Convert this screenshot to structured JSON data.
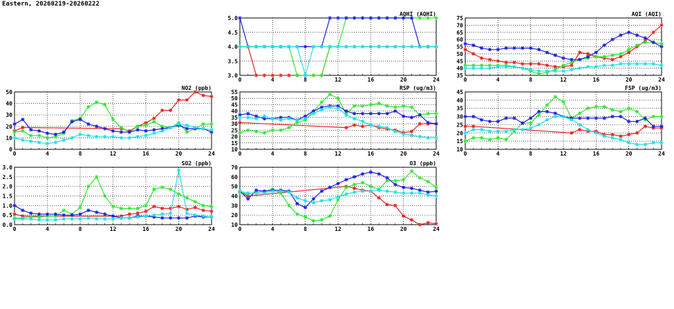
{
  "page": {
    "title": "Eastern, 20260219-20260222"
  },
  "colors": {
    "red": "#e8201f",
    "green": "#2ee82e",
    "blue": "#1c1ce0",
    "cyan": "#1ee0e8"
  },
  "chart_data": [
    {
      "id": "aqhi",
      "type": "line",
      "title": "AQHI (AQHI)",
      "xlim": [
        0,
        24
      ],
      "xticks": [
        0,
        4,
        8,
        12,
        16,
        20,
        24
      ],
      "ylim": [
        3,
        5
      ],
      "yticks": [
        "3.0",
        "3.5",
        "4.0",
        "4.5",
        "5.0"
      ],
      "grid": true,
      "x": [
        0,
        1,
        2,
        3,
        4,
        5,
        6,
        7,
        8,
        9,
        10,
        11,
        12,
        13,
        14,
        15,
        16,
        17,
        18,
        19,
        20,
        21,
        22,
        23,
        24
      ],
      "series": [
        {
          "color": "red",
          "values": [
            4,
            4,
            3,
            3,
            3,
            3,
            3,
            3,
            3,
            3,
            3,
            4,
            4,
            4,
            4,
            4,
            4,
            4,
            4,
            4,
            4,
            4,
            4,
            4,
            4
          ]
        },
        {
          "color": "green",
          "values": [
            4,
            4,
            4,
            4,
            4,
            4,
            4,
            3,
            3,
            3,
            3,
            4,
            4,
            5,
            5,
            5,
            5,
            5,
            5,
            5,
            5,
            5,
            5,
            5,
            5
          ]
        },
        {
          "color": "blue",
          "values": [
            5,
            4,
            4,
            4,
            4,
            4,
            4,
            4,
            4,
            4,
            4,
            5,
            5,
            5,
            5,
            5,
            5,
            5,
            5,
            5,
            5,
            5,
            4,
            4,
            4
          ]
        },
        {
          "color": "cyan",
          "values": [
            4,
            4,
            4,
            4,
            4,
            4,
            4,
            4,
            3,
            4,
            4,
            4,
            4,
            4,
            4,
            4,
            4,
            4,
            4,
            4,
            4,
            4,
            4,
            4,
            4
          ]
        }
      ]
    },
    {
      "id": "aqi",
      "type": "line",
      "title": "AQI (AQI)",
      "xlim": [
        0,
        24
      ],
      "xticks": [
        0,
        4,
        8,
        12,
        16,
        20,
        24
      ],
      "ylim": [
        35,
        75
      ],
      "yticks": [
        "35",
        "40",
        "45",
        "50",
        "55",
        "60",
        "65",
        "70",
        "75"
      ],
      "grid": true,
      "x": [
        0,
        1,
        2,
        3,
        4,
        5,
        6,
        7,
        8,
        9,
        10,
        11,
        12,
        13,
        14,
        15,
        16,
        17,
        18,
        19,
        20,
        21,
        22,
        23,
        24
      ],
      "series": [
        {
          "color": "red",
          "values": [
            53,
            50,
            47,
            46,
            45,
            44,
            44,
            43,
            43,
            43,
            42,
            41,
            41,
            42,
            51,
            50,
            48,
            47,
            46,
            48,
            51,
            55,
            59,
            65,
            70
          ]
        },
        {
          "color": "green",
          "values": [
            42,
            42,
            42,
            42,
            42,
            42,
            41,
            40,
            38,
            36,
            37,
            39,
            42,
            44,
            46,
            47,
            48,
            48,
            49,
            50,
            53,
            56,
            58,
            58,
            57
          ]
        },
        {
          "color": "blue",
          "values": [
            57,
            56,
            54,
            53,
            53,
            54,
            54,
            54,
            54,
            53,
            51,
            49,
            47,
            46,
            46,
            48,
            51,
            56,
            60,
            63,
            65,
            63,
            61,
            58,
            55
          ]
        },
        {
          "color": "cyan",
          "values": [
            40,
            40,
            40,
            40,
            41,
            41,
            41,
            40,
            39,
            38,
            38,
            38,
            38,
            39,
            40,
            41,
            41,
            42,
            42,
            43,
            43,
            43,
            43,
            43,
            42
          ]
        }
      ]
    },
    {
      "id": "no2",
      "type": "line",
      "title": "NO2 (ppb)",
      "xlim": [
        0,
        24
      ],
      "xticks": [
        0,
        4,
        8,
        12,
        16,
        20,
        24
      ],
      "ylim": [
        0,
        50
      ],
      "yticks": [
        "0",
        "10",
        "20",
        "30",
        "40",
        "50"
      ],
      "grid": true,
      "x": [
        0,
        1,
        2,
        3,
        4,
        5,
        6,
        7,
        8,
        9,
        10,
        11,
        12,
        13,
        14,
        15,
        16,
        17,
        18,
        19,
        20,
        21,
        22,
        23,
        24
      ],
      "series": [
        {
          "color": "red",
          "values": [
            16,
            19,
            null,
            null,
            null,
            null,
            null,
            null,
            null,
            null,
            null,
            null,
            null,
            18,
            16,
            20,
            23,
            27,
            34,
            34,
            43,
            43,
            50,
            47,
            46
          ]
        },
        {
          "color": "green",
          "values": [
            15,
            16,
            12,
            12,
            10,
            11,
            14,
            25,
            27,
            37,
            41,
            39,
            26,
            19,
            15,
            20,
            21,
            24,
            20,
            19,
            23,
            15,
            18,
            22,
            22
          ]
        },
        {
          "color": "blue",
          "values": [
            22,
            26,
            17,
            16,
            14,
            13,
            15,
            24,
            26,
            22,
            20,
            18,
            16,
            15,
            15,
            17,
            16,
            17,
            18,
            19,
            21,
            18,
            18,
            18,
            15
          ]
        },
        {
          "color": "cyan",
          "values": [
            10,
            8,
            7,
            6,
            5,
            6,
            8,
            10,
            13,
            12,
            11,
            11,
            11,
            10,
            10,
            11,
            12,
            14,
            16,
            19,
            22,
            21,
            19,
            18,
            17
          ]
        }
      ]
    },
    {
      "id": "rsp",
      "type": "line",
      "title": "RSP (ug/m3)",
      "xlim": [
        0,
        24
      ],
      "xticks": [
        0,
        4,
        8,
        12,
        16,
        20,
        24
      ],
      "ylim": [
        10,
        55
      ],
      "yticks": [
        "10",
        "15",
        "20",
        "25",
        "30",
        "35",
        "40",
        "45",
        "50",
        "55"
      ],
      "grid": true,
      "x": [
        0,
        1,
        2,
        3,
        4,
        5,
        6,
        7,
        8,
        9,
        10,
        11,
        12,
        13,
        14,
        15,
        16,
        17,
        18,
        19,
        20,
        21,
        22,
        23,
        24
      ],
      "series": [
        {
          "color": "red",
          "values": [
            31,
            null,
            null,
            null,
            null,
            null,
            null,
            null,
            null,
            null,
            null,
            null,
            null,
            27,
            29,
            28,
            29,
            27,
            26,
            25,
            23,
            24,
            30,
            30,
            30
          ]
        },
        {
          "color": "green",
          "values": [
            23,
            25,
            24,
            23,
            25,
            25,
            27,
            31,
            33,
            40,
            47,
            53,
            50,
            38,
            44,
            44,
            45,
            46,
            44,
            43,
            44,
            43,
            37,
            38,
            38
          ]
        },
        {
          "color": "blue",
          "values": [
            37,
            38,
            36,
            34,
            34,
            35,
            35,
            33,
            36,
            40,
            43,
            44,
            44,
            40,
            38,
            38,
            38,
            38,
            38,
            40,
            36,
            35,
            37,
            31,
            30
          ]
        },
        {
          "color": "cyan",
          "values": [
            35,
            35,
            34,
            36,
            34,
            33,
            34,
            33,
            34,
            38,
            41,
            43,
            42,
            37,
            34,
            32,
            29,
            28,
            27,
            24,
            22,
            21,
            20,
            19,
            19
          ]
        }
      ]
    },
    {
      "id": "fsp",
      "type": "line",
      "title": "FSP (ug/m3)",
      "xlim": [
        0,
        24
      ],
      "xticks": [
        0,
        4,
        8,
        12,
        16,
        20,
        24
      ],
      "ylim": [
        10,
        45
      ],
      "yticks": [
        "10",
        "15",
        "20",
        "25",
        "30",
        "35",
        "40",
        "45"
      ],
      "grid": true,
      "x": [
        0,
        1,
        2,
        3,
        4,
        5,
        6,
        7,
        8,
        9,
        10,
        11,
        12,
        13,
        14,
        15,
        16,
        17,
        18,
        19,
        20,
        21,
        22,
        23,
        24
      ],
      "series": [
        {
          "color": "red",
          "values": [
            24,
            24,
            null,
            null,
            null,
            null,
            null,
            null,
            null,
            null,
            null,
            null,
            null,
            20,
            22,
            21,
            21,
            19,
            19,
            18,
            19,
            20,
            24,
            23,
            23
          ]
        },
        {
          "color": "green",
          "values": [
            15,
            17,
            17,
            16,
            17,
            16,
            21,
            26,
            26,
            31,
            37,
            42,
            39,
            29,
            32,
            35,
            36,
            36,
            34,
            33,
            35,
            33,
            28,
            30,
            30
          ]
        },
        {
          "color": "blue",
          "values": [
            30,
            30,
            28,
            27,
            27,
            29,
            29,
            26,
            29,
            33,
            33,
            32,
            30,
            29,
            29,
            29,
            29,
            29,
            30,
            30,
            27,
            27,
            29,
            24,
            24
          ]
        },
        {
          "color": "cyan",
          "values": [
            20,
            22,
            22,
            21,
            21,
            21,
            22,
            22,
            23,
            25,
            28,
            30,
            30,
            28,
            25,
            22,
            20,
            18,
            17,
            16,
            14,
            13,
            13,
            14,
            14
          ]
        }
      ]
    },
    {
      "id": "so2",
      "type": "line",
      "title": "SO2 (ppb)",
      "xlim": [
        0,
        24
      ],
      "xticks": [
        0,
        4,
        8,
        12,
        16,
        20,
        24
      ],
      "ylim": [
        0,
        3
      ],
      "yticks": [
        "0.0",
        "0.5",
        "1.0",
        "1.5",
        "2.0",
        "2.5",
        "3.0"
      ],
      "grid": true,
      "x": [
        0,
        1,
        2,
        3,
        4,
        5,
        6,
        7,
        8,
        9,
        10,
        11,
        12,
        13,
        14,
        15,
        16,
        17,
        18,
        19,
        20,
        21,
        22,
        23,
        24
      ],
      "series": [
        {
          "color": "red",
          "values": [
            0.55,
            0.45,
            null,
            null,
            null,
            null,
            null,
            null,
            null,
            null,
            null,
            null,
            null,
            0.45,
            0.55,
            0.6,
            0.7,
            0.95,
            0.85,
            0.85,
            0.95,
            0.8,
            0.9,
            0.75,
            0.7
          ]
        },
        {
          "color": "green",
          "values": [
            0.35,
            0.35,
            0.4,
            0.4,
            0.45,
            0.45,
            0.75,
            0.55,
            0.9,
            2.0,
            2.5,
            1.5,
            0.95,
            0.85,
            0.85,
            0.85,
            1.0,
            1.85,
            1.95,
            1.85,
            1.6,
            1.4,
            1.2,
            1.0,
            0.95
          ]
        },
        {
          "color": "blue",
          "values": [
            1.0,
            0.75,
            0.6,
            0.55,
            0.55,
            0.55,
            0.5,
            0.5,
            0.55,
            0.75,
            0.65,
            0.55,
            0.45,
            0.35,
            0.35,
            0.45,
            0.45,
            0.4,
            0.35,
            0.35,
            0.35,
            0.35,
            0.45,
            0.4,
            0.4
          ]
        },
        {
          "color": "cyan",
          "values": [
            0.3,
            0.3,
            0.3,
            0.25,
            0.25,
            0.25,
            0.3,
            0.3,
            0.3,
            0.35,
            0.3,
            0.3,
            0.3,
            0.35,
            0.35,
            0.4,
            0.45,
            0.5,
            0.55,
            0.6,
            2.85,
            0.6,
            0.5,
            0.45,
            0.4
          ]
        }
      ]
    },
    {
      "id": "o3",
      "type": "line",
      "title": "O3 (ppb)",
      "xlim": [
        0,
        24
      ],
      "xticks": [
        0,
        4,
        8,
        12,
        16,
        20,
        24
      ],
      "ylim": [
        10,
        70
      ],
      "yticks": [
        "10",
        "20",
        "30",
        "40",
        "50",
        "60",
        "70"
      ],
      "grid": true,
      "x": [
        0,
        1,
        2,
        3,
        4,
        5,
        6,
        7,
        8,
        9,
        10,
        11,
        12,
        13,
        14,
        15,
        16,
        17,
        18,
        19,
        20,
        21,
        22,
        23,
        24
      ],
      "series": [
        {
          "color": "red",
          "values": [
            44,
            40,
            null,
            null,
            null,
            null,
            null,
            null,
            null,
            null,
            null,
            null,
            null,
            50,
            48,
            46,
            45,
            38,
            31,
            30,
            19,
            15,
            10,
            12,
            11
          ]
        },
        {
          "color": "green",
          "values": [
            44,
            42,
            44,
            45,
            47,
            43,
            30,
            21,
            18,
            14,
            15,
            19,
            36,
            49,
            52,
            54,
            50,
            47,
            56,
            56,
            57,
            66,
            59,
            55,
            49
          ]
        },
        {
          "color": "blue",
          "values": [
            45,
            37,
            46,
            45,
            46,
            46,
            45,
            32,
            28,
            37,
            45,
            49,
            53,
            57,
            60,
            63,
            65,
            63,
            59,
            52,
            49,
            48,
            46,
            44,
            45
          ]
        },
        {
          "color": "cyan",
          "values": [
            45,
            43,
            43,
            43,
            45,
            45,
            44,
            38,
            35,
            33,
            35,
            36,
            39,
            42,
            44,
            45,
            45,
            46,
            45,
            44,
            43,
            43,
            43,
            41,
            40
          ]
        }
      ]
    }
  ]
}
